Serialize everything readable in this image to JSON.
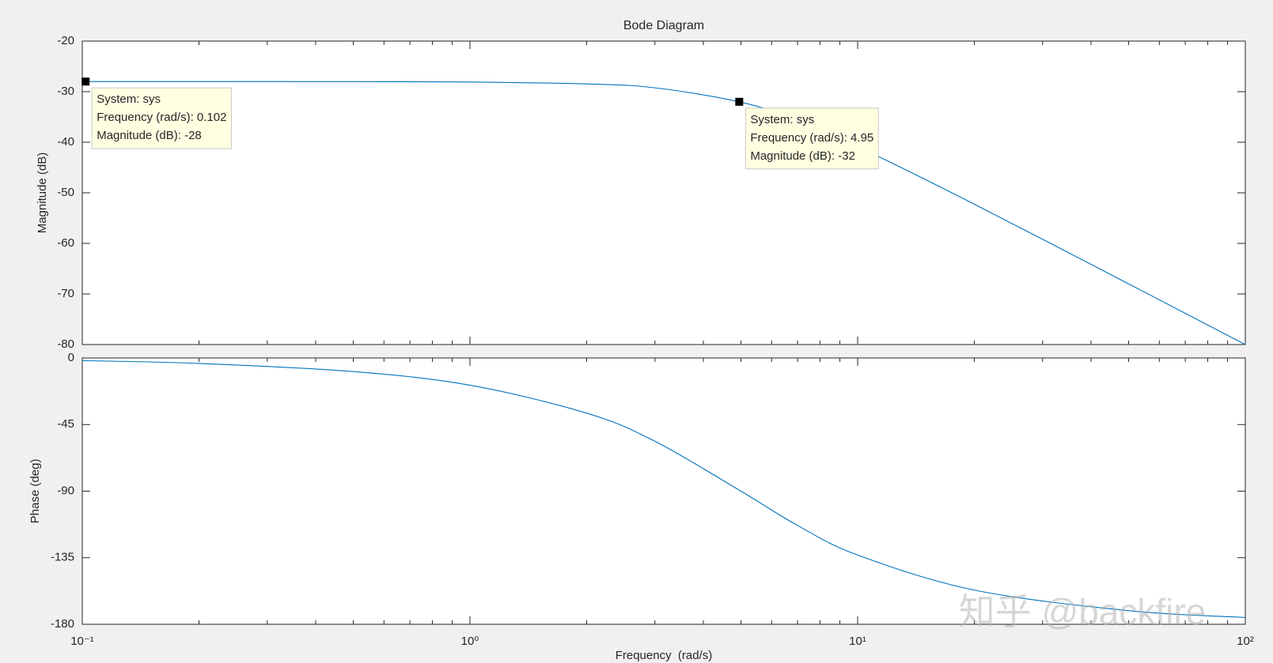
{
  "chart_data": [
    {
      "type": "line",
      "title": "Bode Diagram",
      "ylabel": "Magnitude (dB)",
      "xscale": "log",
      "xlim": [
        0.1,
        100
      ],
      "xticks": [
        0.1,
        1,
        10,
        100
      ],
      "xticklabels": false,
      "ylim": [
        -80,
        -20
      ],
      "yticks": [
        -80,
        -70,
        -60,
        -50,
        -40,
        -30,
        -20
      ],
      "color": "#0072bd",
      "x": [
        0.1,
        0.2,
        0.5,
        1,
        2,
        3,
        5,
        7,
        10,
        20,
        50,
        100
      ],
      "values": [
        -28.0,
        -28.0,
        -28.02,
        -28.1,
        -28.47,
        -29.24,
        -32.08,
        -35.7,
        -40.84,
        -52.25,
        -68.0,
        -80.0
      ],
      "datatips": [
        {
          "x": 0.102,
          "y": -28,
          "lines": [
            "System: sys",
            "Frequency (rad/s): 0.102",
            "Magnitude (dB): -28"
          ]
        },
        {
          "x": 4.95,
          "y": -32,
          "lines": [
            "System: sys",
            "Frequency (rad/s): 4.95",
            "Magnitude (dB): -32"
          ]
        }
      ]
    },
    {
      "type": "line",
      "ylabel": "Phase (deg)",
      "xlabel": "Frequency  (rad/s)",
      "xscale": "log",
      "xlim": [
        0.1,
        100
      ],
      "xticks": [
        {
          "value": 0.1,
          "label": "10⁻¹"
        },
        {
          "value": 1,
          "label": "10⁰"
        },
        {
          "value": 10,
          "label": "10¹"
        },
        {
          "value": 100,
          "label": "10²"
        }
      ],
      "ylim": [
        -180,
        0
      ],
      "yticks": [
        -180,
        -135,
        -90,
        -45,
        0
      ],
      "color": "#0072bd",
      "x": [
        0.1,
        0.2,
        0.5,
        1,
        2,
        3,
        5,
        7,
        10,
        20,
        50,
        100
      ],
      "values": [
        -1.8,
        -3.7,
        -9.2,
        -18.4,
        -37.3,
        -56.3,
        -90,
        -113.2,
        -133.2,
        -156.9,
        -170.8,
        -175.4
      ]
    }
  ],
  "watermark": "知乎 @backfire"
}
